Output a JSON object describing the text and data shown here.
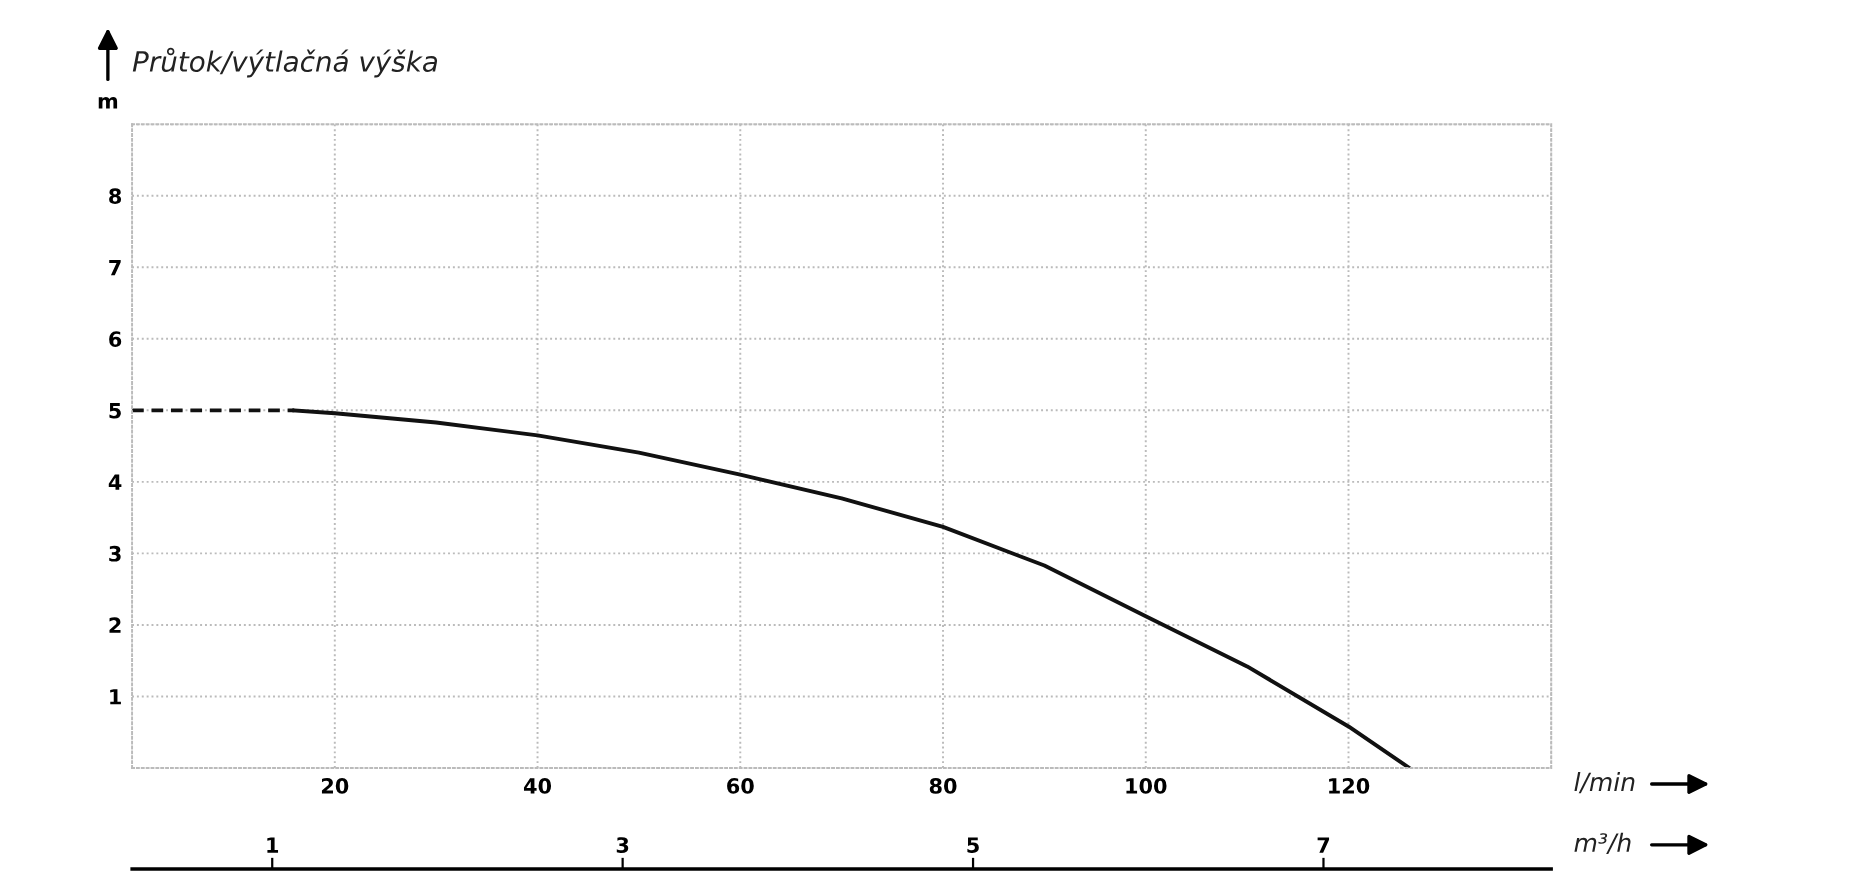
{
  "chart_data": {
    "type": "line",
    "title": "Průtok/výtlačná výška",
    "ylabel": "m",
    "xlabel": "l/min",
    "x2label": "m³/h",
    "series": [
      {
        "color": "#111111",
        "line_style": "dashed",
        "x": [
          0,
          8,
          16
        ],
        "values": [
          5.0,
          5.0,
          5.0
        ]
      },
      {
        "color": "#111111",
        "line_style": "solid",
        "x": [
          16,
          20,
          30,
          40,
          50,
          60,
          70,
          80,
          90,
          100,
          110,
          120,
          126
        ],
        "values": [
          5.0,
          4.96,
          4.83,
          4.65,
          4.41,
          4.1,
          3.77,
          3.37,
          2.83,
          2.12,
          1.42,
          0.58,
          0
        ]
      }
    ],
    "xlim": [
      0,
      140
    ],
    "xticks": [
      {
        "value": 0,
        "label": null
      },
      20,
      40,
      60,
      80,
      100,
      120,
      {
        "value": 140,
        "label": null
      }
    ],
    "ylim": [
      0,
      9
    ],
    "yticks": [
      {
        "value": 0,
        "label": null
      },
      1,
      2,
      3,
      4,
      5,
      6,
      7,
      8,
      {
        "value": 9,
        "label": null
      }
    ],
    "x2lim": [
      0.2,
      8.3
    ],
    "x2ticks": [
      1,
      3,
      5,
      7
    ],
    "grid": true,
    "legend": false,
    "marker": "none"
  }
}
